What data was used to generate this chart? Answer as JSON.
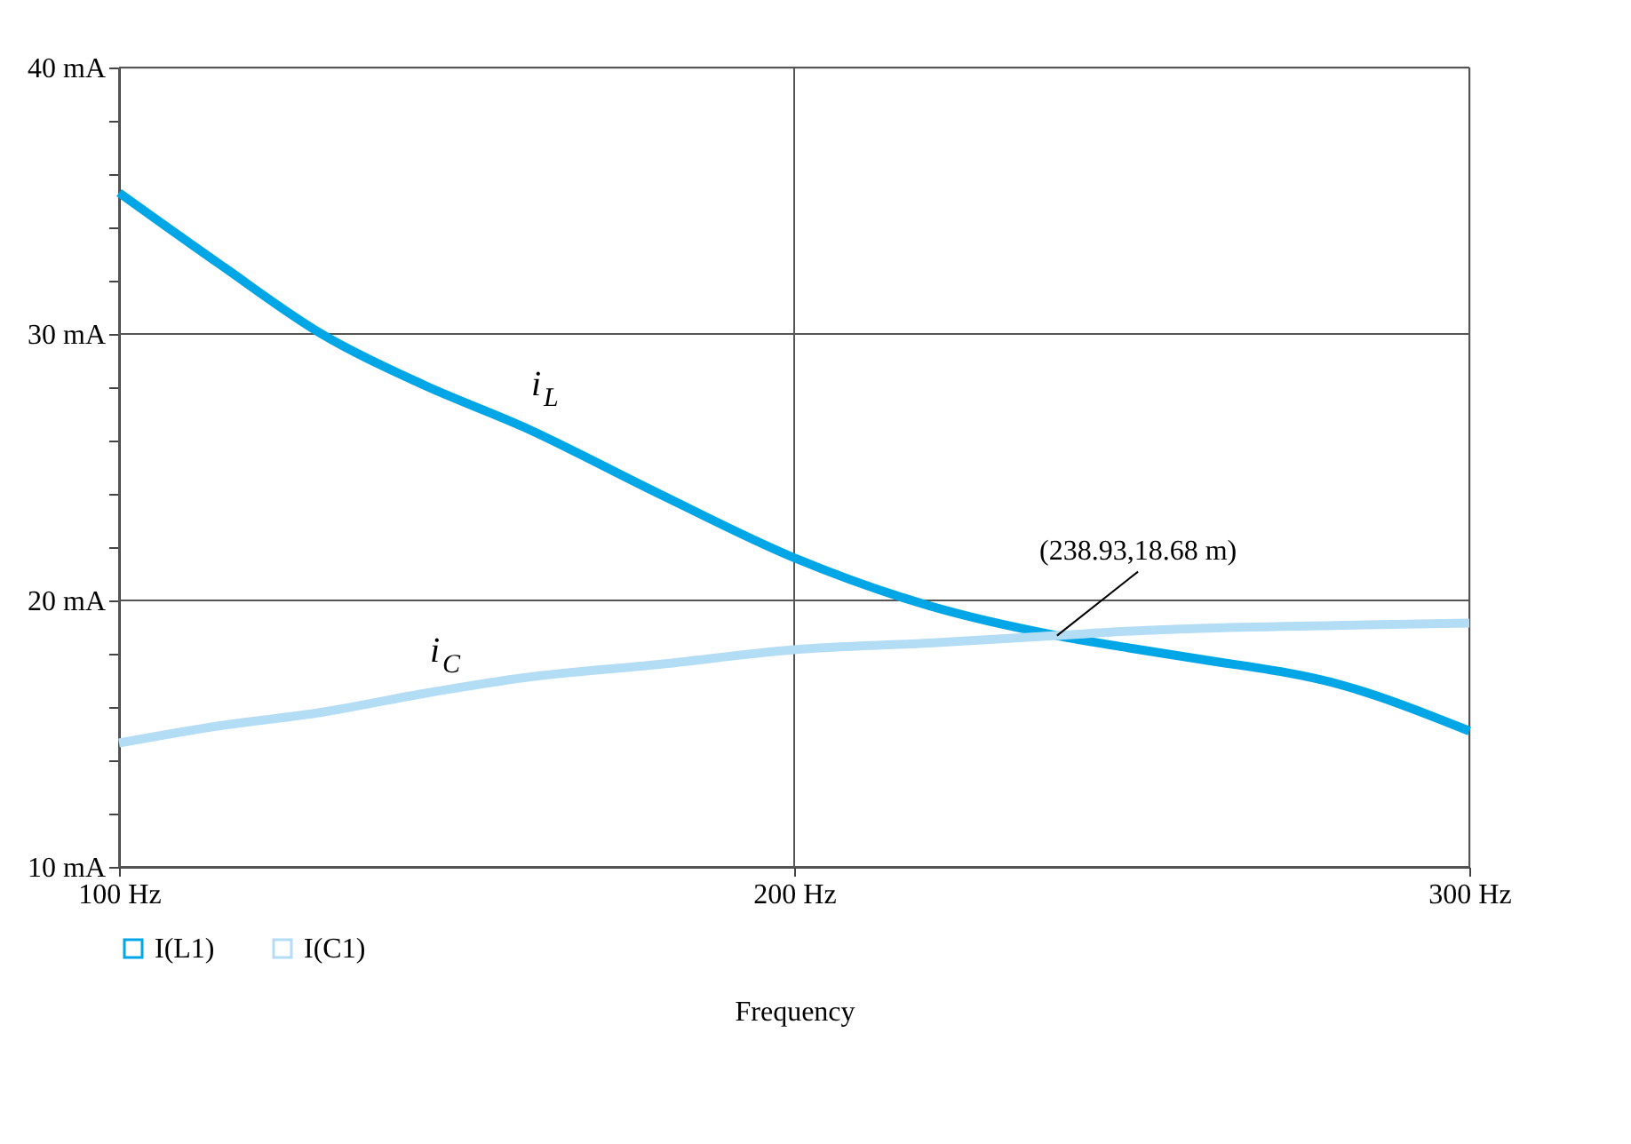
{
  "chart_data": {
    "type": "line",
    "xlabel": "Frequency",
    "x": [
      100,
      115,
      130,
      145,
      160,
      180,
      200,
      220,
      238.93,
      250,
      260,
      280,
      300
    ],
    "series": [
      {
        "name": "I(L1)",
        "color": "#00a6e6",
        "values": [
          35.3,
          32.6,
          30.0,
          28.1,
          26.5,
          24.0,
          21.6,
          19.8,
          18.68,
          18.2,
          17.8,
          16.9,
          15.1
        ]
      },
      {
        "name": "I(C1)",
        "color": "#b3dcf5",
        "values": [
          14.65,
          15.3,
          15.8,
          16.5,
          17.1,
          17.6,
          18.15,
          18.4,
          18.68,
          18.85,
          18.95,
          19.06,
          19.15
        ]
      }
    ],
    "xlim": [
      100,
      300
    ],
    "ylim": [
      10,
      40
    ],
    "xticks": [
      {
        "value": 100,
        "label": "100 Hz"
      },
      {
        "value": 200,
        "label": "200 Hz"
      },
      {
        "value": 300,
        "label": "300 Hz"
      }
    ],
    "yticks": [
      {
        "value": 10,
        "label": "10 mA"
      },
      {
        "value": 12,
        "label": null
      },
      {
        "value": 14,
        "label": null
      },
      {
        "value": 16,
        "label": null
      },
      {
        "value": 18,
        "label": null
      },
      {
        "value": 20,
        "label": "20 mA"
      },
      {
        "value": 22,
        "label": null
      },
      {
        "value": 24,
        "label": null
      },
      {
        "value": 26,
        "label": null
      },
      {
        "value": 28,
        "label": null
      },
      {
        "value": 30,
        "label": "30 mA"
      },
      {
        "value": 32,
        "label": null
      },
      {
        "value": 34,
        "label": null
      },
      {
        "value": 36,
        "label": null
      },
      {
        "value": 38,
        "label": null
      },
      {
        "value": 40,
        "label": "40 mA"
      }
    ],
    "annotations": [
      {
        "text": "i$_{L}$",
        "x": 160,
        "y": 26.5
      },
      {
        "text": "i$_{C}$",
        "x": 145,
        "y": 16.5
      },
      {
        "text": "(238.93,18.68 m)",
        "x": 238.93,
        "y": 18.68
      }
    ],
    "grid": true,
    "legend": "bottom left",
    "marker": "none",
    "line_style": "solid"
  }
}
